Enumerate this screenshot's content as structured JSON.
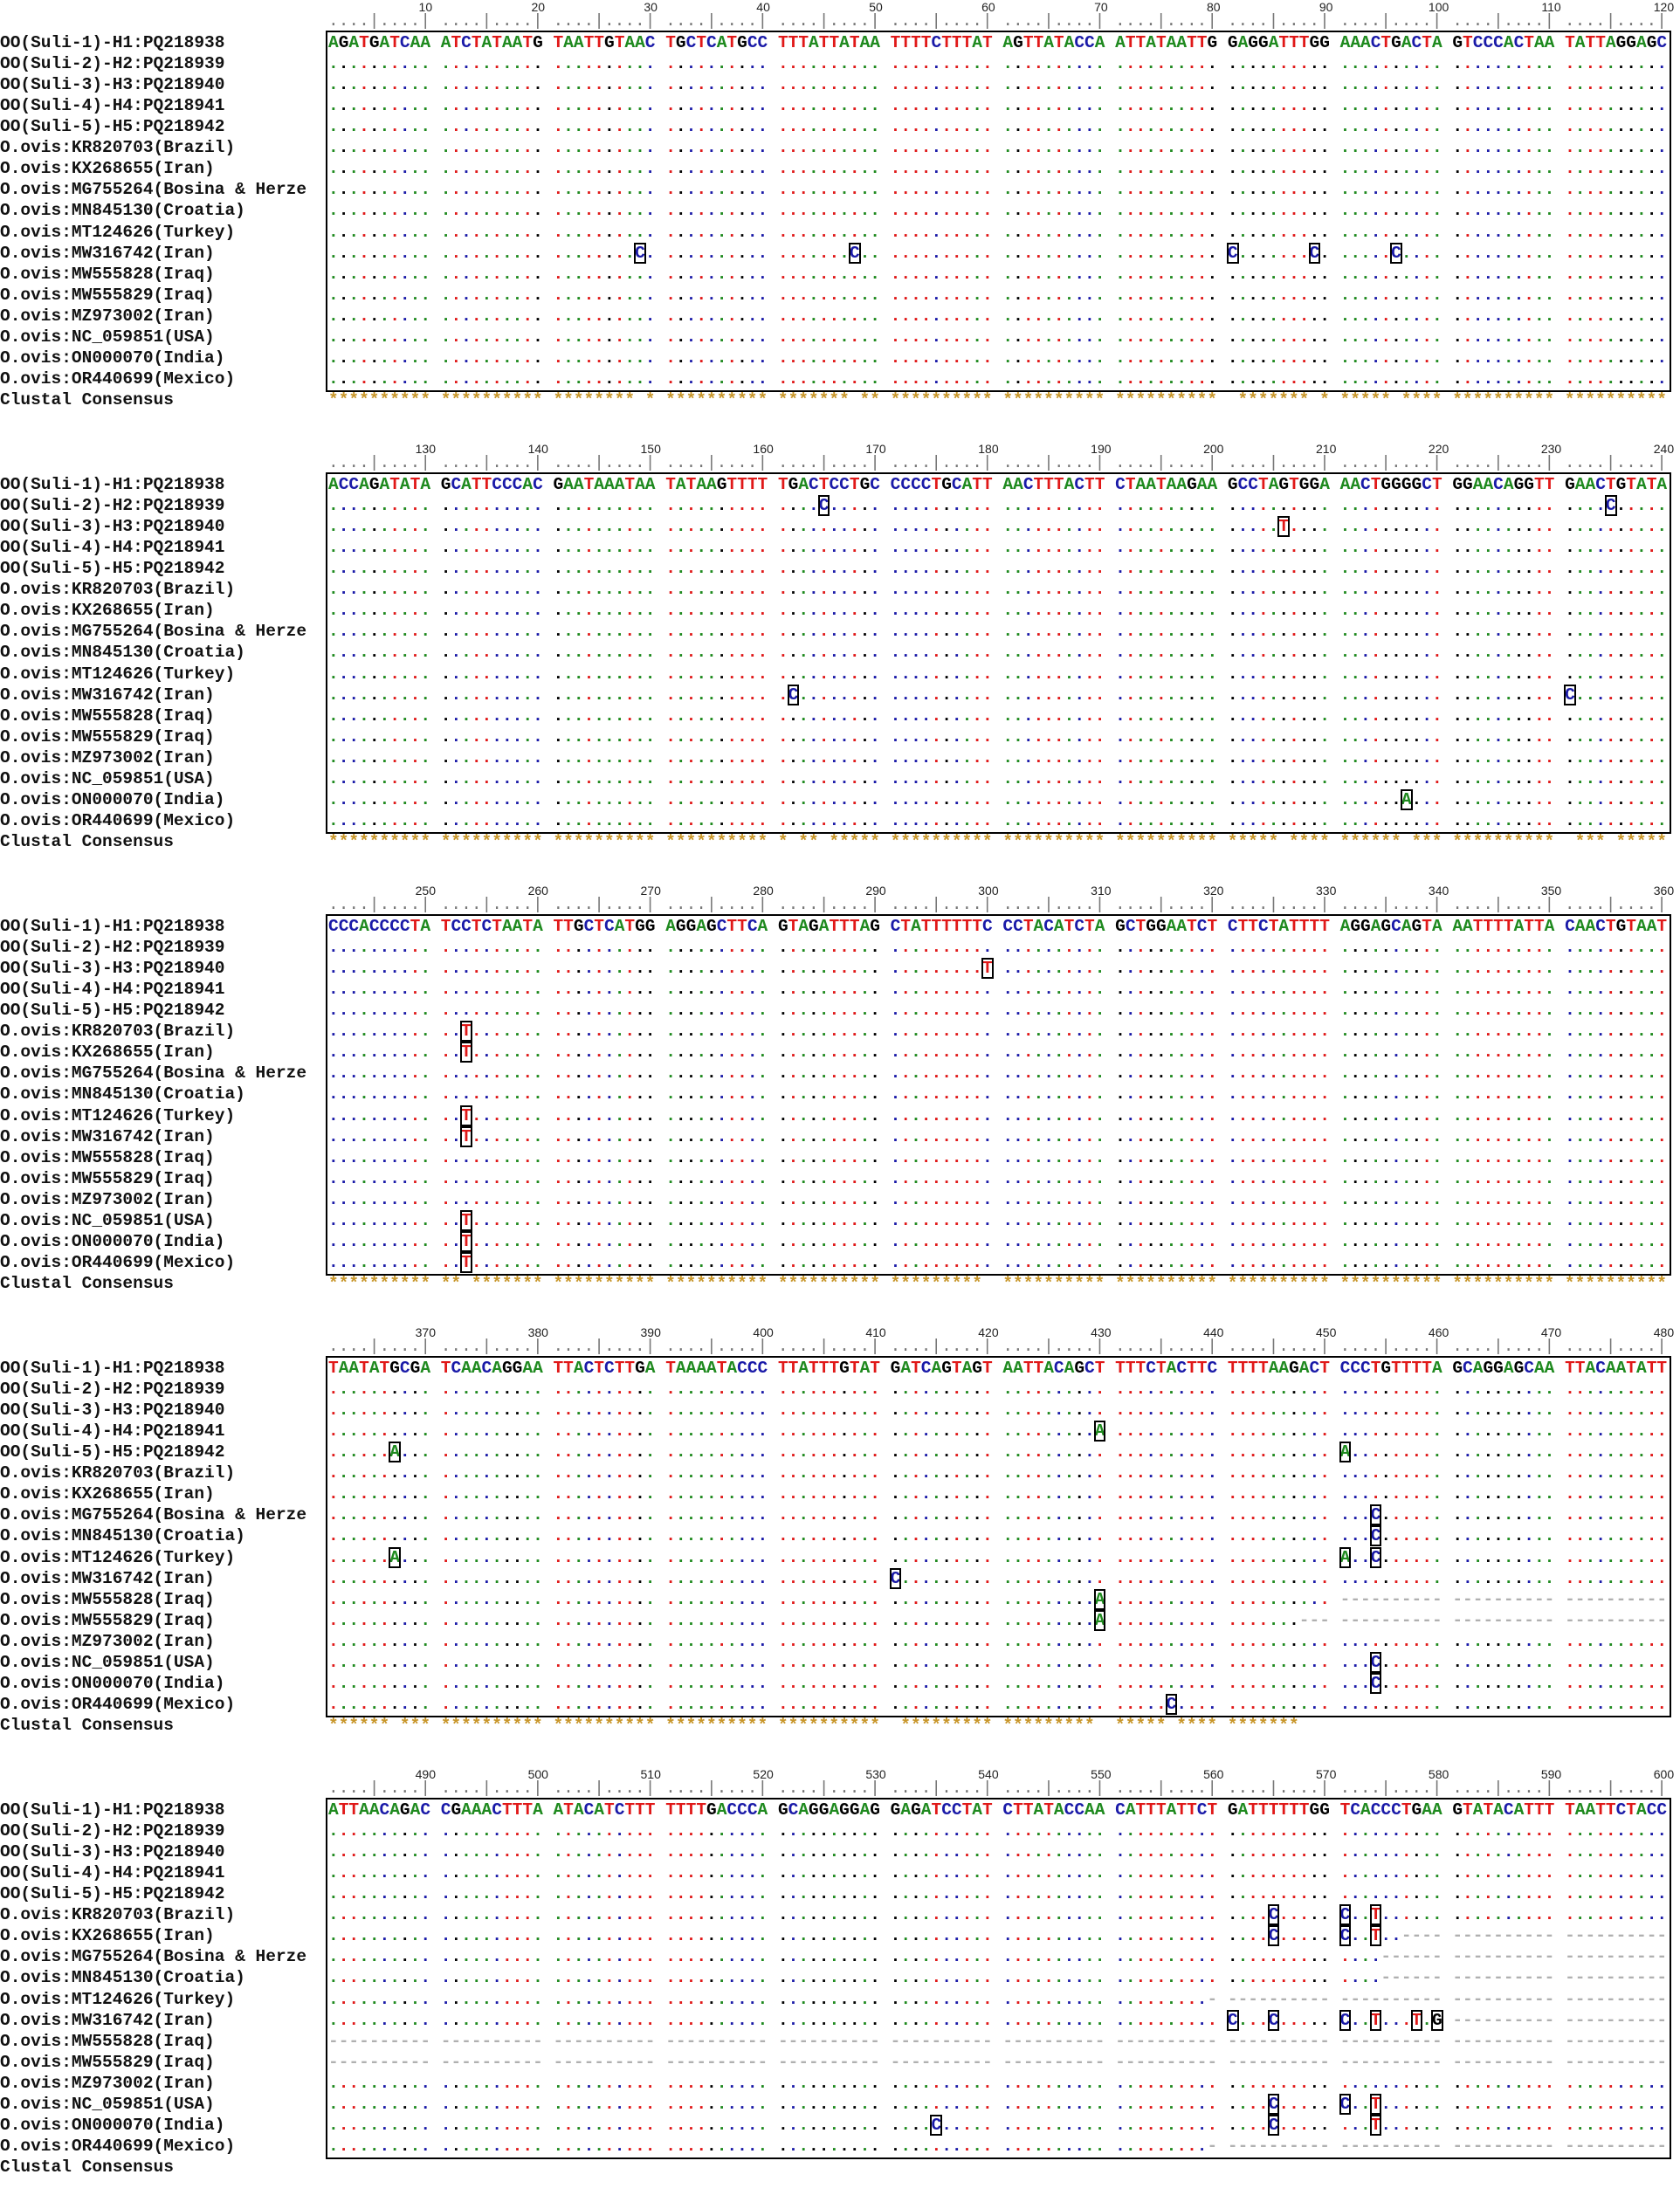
{
  "sequence_labels": [
    "OO(Suli-1)-H1:PQ218938",
    "OO(Suli-2)-H2:PQ218939",
    "OO(Suli-3)-H3:PQ218940",
    "OO(Suli-4)-H4:PQ218941",
    "OO(Suli-5)-H5:PQ218942",
    "O.ovis:KR820703(Brazil)",
    "O.ovis:KX268655(Iran)",
    "O.ovis:MG755264(Bosina & Herze",
    "O.ovis:MN845130(Croatia)",
    "O.ovis:MT124626(Turkey)",
    "O.ovis:MW316742(Iran)",
    "O.ovis:MW555828(Iraq)",
    "O.ovis:MW555829(Iraq)",
    "O.ovis:MZ973002(Iran)",
    "O.ovis:NC_059851(USA)",
    "O.ovis:ON000070(India)",
    "O.ovis:OR440699(Mexico)"
  ],
  "consensus_label": "Clustal Consensus",
  "colors": {
    "A": "#1f8a1f",
    "T": "#e01818",
    "C": "#1a1aa8",
    "G": "#000000",
    "gap": "#b0b0b0",
    "consensus": "#c8962a",
    "ruler": "#777777"
  },
  "blocks": [
    {
      "ruler_labels": [
        "10",
        "20",
        "30",
        "40",
        "50",
        "60",
        "70",
        "80",
        "90",
        "100",
        "110",
        "120"
      ],
      "reference": [
        "AGATGATCAA",
        "ATCTATAATG",
        "TAATTGTAAC",
        "TGCTCATGCC",
        "TTTATTATAA",
        "TTTTCTTTAT",
        "AGTTATACCA",
        "ATTATAATTG",
        "GAGGATTTGG",
        "AAACTGACTA",
        "GTCCCACTAA",
        "TATTAGGAGC"
      ],
      "consensus": [
        "**********",
        "**********",
        "******** *",
        "**********",
        "******* **",
        "**********",
        "**********",
        "**********",
        " ******* *",
        "***** ****",
        "**********",
        "**********"
      ],
      "variants": {
        "10": {
          "29": "C",
          "48": "C",
          "81": "C",
          "89": "C",
          "96": "C"
        }
      },
      "gap_from": {}
    },
    {
      "ruler_labels": [
        "130",
        "140",
        "150",
        "160",
        "170",
        "180",
        "190",
        "200",
        "210",
        "220",
        "230",
        "240"
      ],
      "reference": [
        "ACCAGATATA",
        "GCATTCCCAC",
        "GAATAAATAA",
        "TATAAGTTTT",
        "TGACTCCTGC",
        "CCCCTGCATT",
        "AACTTTACTT",
        "CTAATAAGAA",
        "GCCTAGTGGA",
        "AACTGGGGCT",
        "GGAACAGGTT",
        "GAACTGTATA"
      ],
      "consensus": [
        "**********",
        "**********",
        "**********",
        "**********",
        "* ** *****",
        "**********",
        "**********",
        "**********",
        "***** ****",
        "****** ***",
        "**********",
        " *** *****"
      ],
      "variants": {
        "1": {
          "45": "C",
          "115": "C"
        },
        "2": {
          "86": "T"
        },
        "10": {
          "42": "C",
          "111": "C"
        },
        "15": {
          "97": "A"
        }
      },
      "gap_from": {}
    },
    {
      "ruler_labels": [
        "250",
        "260",
        "270",
        "280",
        "290",
        "300",
        "310",
        "320",
        "330",
        "340",
        "350",
        "360"
      ],
      "reference": [
        "CCCACCCCTA",
        "TCCTCTAATA",
        "TTGCTCATGG",
        "AGGAGCTTCA",
        "GTAGATTTAG",
        "CTATTTTTTC",
        "CCTACATCTA",
        "GCTGGAATCT",
        "CTTCTATTTT",
        "AGGAGCAGTA",
        "AATTTTATTA",
        "CAACTGTAAT"
      ],
      "consensus": [
        "**********",
        "** *******",
        "**********",
        "**********",
        "**********",
        "********* ",
        "**********",
        "**********",
        "**********",
        "**********",
        "**********",
        "**********"
      ],
      "variants": {
        "2": {
          "60": "T"
        },
        "5": {
          "13": "T"
        },
        "6": {
          "13": "T"
        },
        "9": {
          "13": "T"
        },
        "10": {
          "13": "T"
        },
        "14": {
          "13": "T"
        },
        "15": {
          "13": "T"
        },
        "16": {
          "13": "T"
        }
      },
      "gap_from": {}
    },
    {
      "ruler_labels": [
        "370",
        "380",
        "390",
        "400",
        "410",
        "420",
        "430",
        "440",
        "450",
        "460",
        "470",
        "480"
      ],
      "reference": [
        "TAATATGCGA",
        "TCAACAGGAA",
        "TTACTCTTGA",
        "TAAAATACCC",
        "TTATTTGTAT",
        "GATCAGTAGT",
        "AATTACAGCT",
        "TTTCTACTTC",
        "TTTTAAGACT",
        "CCCTGTTTTA",
        "GCAGGAGCAA",
        "TTACAATATT"
      ],
      "consensus": [
        "****** ***",
        "**********",
        "**********",
        "**********",
        "**********",
        " *********",
        "********* ",
        "***** ****",
        "*******   ",
        "          ",
        "          ",
        "          "
      ],
      "variants": {
        "3": {
          "70": "A"
        },
        "4": {
          "7": "A",
          "91": "A"
        },
        "7": {
          "94": "C"
        },
        "8": {
          "94": "C"
        },
        "9": {
          "7": "A",
          "91": "A",
          "94": "C"
        },
        "10": {
          "51": "C"
        },
        "11": {
          "70": "A"
        },
        "12": {
          "70": "A"
        },
        "14": {
          "94": "C"
        },
        "15": {
          "94": "C"
        },
        "16": {
          "76": "C"
        }
      },
      "gap_from": {
        "11": 91,
        "12": 88
      }
    },
    {
      "ruler_labels": [
        "490",
        "500",
        "510",
        "520",
        "530",
        "540",
        "550",
        "560",
        "570",
        "580",
        "590",
        "600"
      ],
      "reference": [
        "ATTAACAGAC",
        "CGAAACTTTA",
        "ATACATCTTT",
        "TTTTGACCCA",
        "GCAGGAGGAG",
        "GAGATCCTAT",
        "CTTATACCAA",
        "CATTTATTCT",
        "GATTTTTTGG",
        "TCACCCTGAA",
        "GTATACATTT",
        "TAATTCTACC"
      ],
      "consensus": [
        "          ",
        "          ",
        "          ",
        "          ",
        "          ",
        "          ",
        "          ",
        "          ",
        "          ",
        "          ",
        "          ",
        "          "
      ],
      "variants": {
        "5": {
          "85": "C",
          "91": "C",
          "94": "T"
        },
        "6": {
          "85": "C",
          "91": "C",
          "94": "T"
        },
        "10": {
          "81": "C",
          "85": "C",
          "91": "C",
          "94": "T",
          "98": "T",
          "100": "G"
        },
        "14": {
          "85": "C",
          "91": "C",
          "94": "T"
        },
        "15": {
          "55": "C",
          "85": "C",
          "94": "T"
        }
      },
      "gap_from": {
        "6": 97,
        "7": 95,
        "8": 95,
        "9": 80,
        "10": 101,
        "11": 1,
        "12": 1,
        "16": 80
      }
    }
  ]
}
